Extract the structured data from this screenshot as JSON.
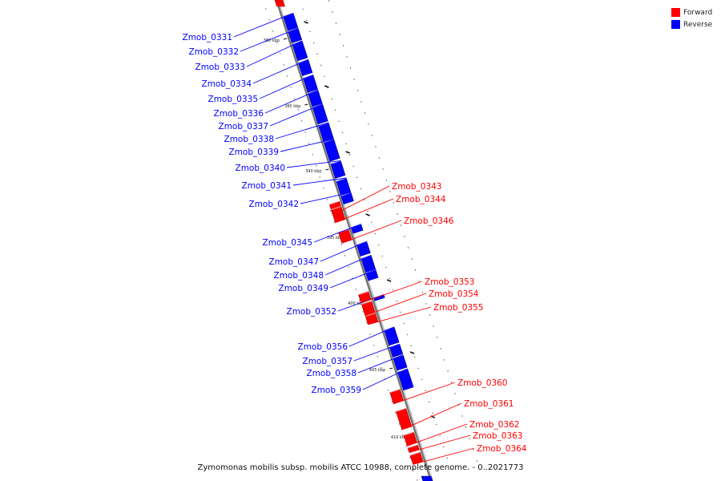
{
  "legend": {
    "forward_label": "Forward",
    "reverse_label": "Reverse",
    "forward_color": "#ff0000",
    "reverse_color": "#0000ff"
  },
  "caption": "Zymomonas mobilis subsp. mobilis ATCC 10988, complete genome. - 0..2021773",
  "ticks": [
    "380 kbp",
    "385 kbp",
    "390 kbp",
    "395 kbp",
    "400 kbp",
    "405 kbp",
    "410 kbp"
  ],
  "genes": [
    {
      "name": "Zmob_0331",
      "strand": "reverse"
    },
    {
      "name": "Zmob_0332",
      "strand": "reverse"
    },
    {
      "name": "Zmob_0333",
      "strand": "reverse"
    },
    {
      "name": "Zmob_0334",
      "strand": "reverse"
    },
    {
      "name": "Zmob_0335",
      "strand": "reverse"
    },
    {
      "name": "Zmob_0336",
      "strand": "reverse"
    },
    {
      "name": "Zmob_0337",
      "strand": "reverse"
    },
    {
      "name": "Zmob_0338",
      "strand": "reverse"
    },
    {
      "name": "Zmob_0339",
      "strand": "reverse"
    },
    {
      "name": "Zmob_0340",
      "strand": "reverse"
    },
    {
      "name": "Zmob_0341",
      "strand": "reverse"
    },
    {
      "name": "Zmob_0342",
      "strand": "reverse"
    },
    {
      "name": "Zmob_0343",
      "strand": "forward"
    },
    {
      "name": "Zmob_0344",
      "strand": "forward"
    },
    {
      "name": "Zmob_0346",
      "strand": "forward"
    },
    {
      "name": "Zmob_0345",
      "strand": "reverse"
    },
    {
      "name": "Zmob_0347",
      "strand": "reverse"
    },
    {
      "name": "Zmob_0348",
      "strand": "reverse"
    },
    {
      "name": "Zmob_0349",
      "strand": "reverse"
    },
    {
      "name": "Zmob_0352",
      "strand": "reverse"
    },
    {
      "name": "Zmob_0353",
      "strand": "forward"
    },
    {
      "name": "Zmob_0354",
      "strand": "forward"
    },
    {
      "name": "Zmob_0355",
      "strand": "forward"
    },
    {
      "name": "Zmob_0356",
      "strand": "reverse"
    },
    {
      "name": "Zmob_0357",
      "strand": "reverse"
    },
    {
      "name": "Zmob_0358",
      "strand": "reverse"
    },
    {
      "name": "Zmob_0359",
      "strand": "reverse"
    },
    {
      "name": "Zmob_0360",
      "strand": "forward"
    },
    {
      "name": "Zmob_0361",
      "strand": "forward"
    },
    {
      "name": "Zmob_0362",
      "strand": "forward"
    },
    {
      "name": "Zmob_0363",
      "strand": "forward"
    },
    {
      "name": "Zmob_0364",
      "strand": "forward"
    }
  ]
}
